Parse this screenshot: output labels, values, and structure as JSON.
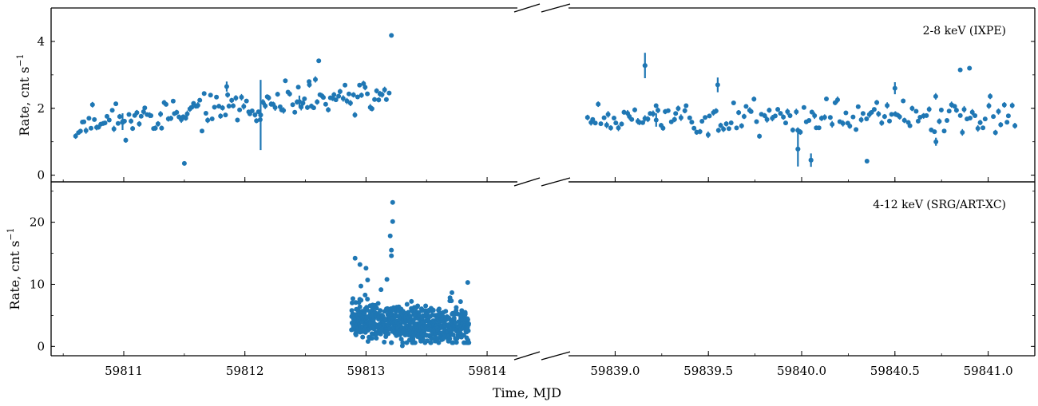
{
  "chart_data": {
    "type": "scatter",
    "xlabel": "Time, MJD",
    "marker_color": "#1f77b4",
    "grid": false,
    "broken_x_axis": true,
    "x_segments": [
      {
        "xlim": [
          59810.4,
          59814.25
        ],
        "ticks": [
          59811,
          59812,
          59813,
          59814
        ],
        "tick_labels": [
          "59811",
          "59812",
          "59813",
          "59814"
        ],
        "minor_step": 0.5
      },
      {
        "xlim": [
          59838.75,
          59841.25
        ],
        "ticks": [
          59839.0,
          59839.5,
          59840.0,
          59840.5,
          59841.0
        ],
        "tick_labels": [
          "59839.0",
          "59839.5",
          "59840.0",
          "59840.5",
          "59841.0"
        ],
        "minor_step": 0.25
      }
    ],
    "panels": [
      {
        "series_name": "2-8 keV (IXPE)",
        "ylabel": "Rate, cnt s",
        "ylabel_sup": "−1",
        "ylim": [
          -0.2,
          5.0
        ],
        "yticks": [
          0,
          2,
          4
        ],
        "segments": [
          {
            "t0": 59810.6,
            "t1": 59813.2,
            "n": 150,
            "base": 1.55,
            "amp": 0.45,
            "slope": 0.22,
            "seed": 11,
            "outliers": [
              [
                59813.21,
                4.18
              ],
              [
                59812.61,
                3.42
              ],
              [
                59811.5,
                0.35
              ],
              [
                59812.13,
                1.8
              ],
              [
                59812.53,
                2.8
              ]
            ],
            "big_errors": [
              [
                59812.13,
                1.8,
                1.05
              ],
              [
                59810.99,
                1.6,
                0.25
              ],
              [
                59811.85,
                2.65,
                0.15
              ],
              [
                59812.45,
                2.2,
                0.18
              ]
            ]
          },
          {
            "t0": 59838.85,
            "t1": 59841.15,
            "n": 165,
            "base": 1.75,
            "amp": 0.5,
            "slope": 0.0,
            "seed": 23,
            "outliers": [
              [
                59839.16,
                3.28
              ],
              [
                59840.9,
                3.2
              ],
              [
                59839.98,
                0.78
              ],
              [
                59840.35,
                0.42
              ],
              [
                59840.05,
                0.45
              ],
              [
                59840.85,
                3.15
              ]
            ],
            "big_errors": [
              [
                59839.16,
                3.28,
                0.38
              ],
              [
                59839.98,
                0.78,
                0.52
              ],
              [
                59840.05,
                0.45,
                0.2
              ],
              [
                59839.55,
                2.7,
                0.22
              ],
              [
                59840.5,
                2.6,
                0.18
              ],
              [
                59840.72,
                1.0,
                0.12
              ],
              [
                59839.22,
                1.65,
                0.2
              ]
            ]
          }
        ]
      },
      {
        "series_name": "4-12 keV (SRG/ART-XC)",
        "ylabel": "Rate, cnt s",
        "ylabel_sup": "−1",
        "ylim": [
          -1.5,
          26.5
        ],
        "yticks": [
          0,
          10,
          20
        ],
        "segments": [
          {
            "t0": 59812.88,
            "t1": 59813.85,
            "n": 700,
            "base": 4.2,
            "amp": 2.6,
            "slope": -0.3,
            "seed": 47,
            "outliers": [
              [
                59813.22,
                23.2
              ],
              [
                59813.22,
                20.1
              ],
              [
                59813.2,
                17.8
              ],
              [
                59813.21,
                15.5
              ],
              [
                59812.91,
                14.2
              ],
              [
                59813.21,
                14.6
              ],
              [
                59813.0,
                12.6
              ],
              [
                59813.3,
                0.1
              ],
              [
                59813.84,
                10.3
              ],
              [
                59812.95,
                13.2
              ]
            ],
            "big_errors": []
          }
        ]
      }
    ]
  }
}
